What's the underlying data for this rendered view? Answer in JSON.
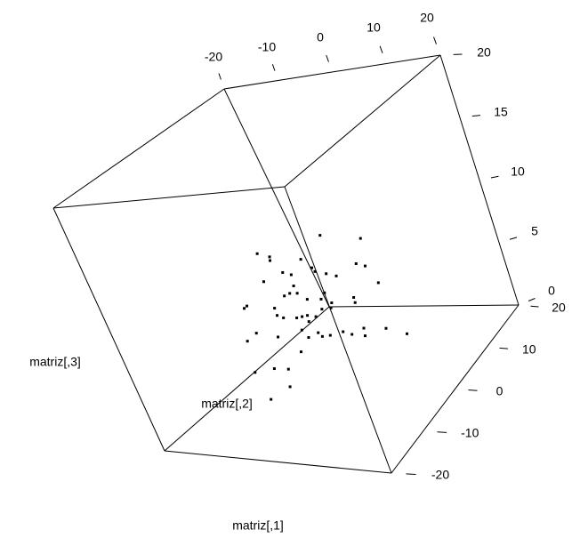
{
  "chart_data": {
    "type": "scatter3d",
    "xlabel": "matriz[,1]",
    "ylabel": "matriz[,2]",
    "zlabel": "matriz[,3]",
    "xlim": [
      -20,
      20
    ],
    "ylim": [
      -20,
      20
    ],
    "zlim": [
      0,
      20
    ],
    "xticks": [
      -20,
      -10,
      0,
      10,
      20
    ],
    "yticks": [
      -20,
      -10,
      0,
      10,
      20
    ],
    "zticks": [
      0,
      5,
      10,
      15,
      20
    ],
    "color": "#000000",
    "x": [
      -7.5,
      -5.5,
      -5.7,
      5.2,
      12.3,
      -4.3,
      -2.9,
      0,
      1.4,
      1.7,
      3.6,
      5.3,
      9.8,
      11.3,
      -8.5,
      -3.3,
      -4.6,
      -5.8,
      -1.8,
      0.8,
      1.9,
      12.6,
      2.5,
      7.0,
      6.9,
      -13.6,
      -14.3,
      -8.6,
      -8.7,
      -7.7,
      -5.2,
      -4.1,
      -3.0,
      -3.2,
      -1.5,
      0.2,
      2.0,
      -3.2,
      -14.1,
      -16.5,
      -10.3,
      -5.2,
      -4.5,
      -1.8,
      -0.2,
      -2.3,
      2.5,
      4.0,
      6.7,
      6.4,
      10.9,
      14.5,
      -7.1,
      -13.7,
      -11.0,
      -17.8,
      -12.2,
      -17.1
    ],
    "y": [
      0,
      0,
      0,
      0,
      0,
      0,
      0,
      0,
      0,
      0,
      0,
      0,
      0,
      0,
      0,
      0,
      0,
      0,
      0,
      0,
      0,
      0,
      0,
      0,
      0,
      0,
      0,
      0,
      0,
      0,
      0,
      0,
      0,
      0,
      0,
      0,
      0,
      0,
      0,
      0,
      0,
      0,
      0,
      0,
      0,
      0,
      0,
      0,
      0,
      0,
      0,
      0,
      0,
      0,
      0,
      0,
      0,
      0
    ],
    "z": [
      10.6,
      10.3,
      10.0,
      11.8,
      11.4,
      9.0,
      8.8,
      10.0,
      9.3,
      9.0,
      8.8,
      8.6,
      9.5,
      9.3,
      8.3,
      7.9,
      7.3,
      7.1,
      6.8,
      6.8,
      7.3,
      8.0,
      6.5,
      6.9,
      6.5,
      6.3,
      6.1,
      6.1,
      5.5,
      5.3,
      5.3,
      5.4,
      5.5,
      5.0,
      5.4,
      6.0,
      6.1,
      7.3,
      4.0,
      3.3,
      3.7,
      4.3,
      3.7,
      3.8,
      3.9,
      4.1,
      4.2,
      4.0,
      4.5,
      3.9,
      4.5,
      4.1,
      2.5,
      1.0,
      1.0,
      0.6,
      -0.5,
      -1.7
    ]
  }
}
